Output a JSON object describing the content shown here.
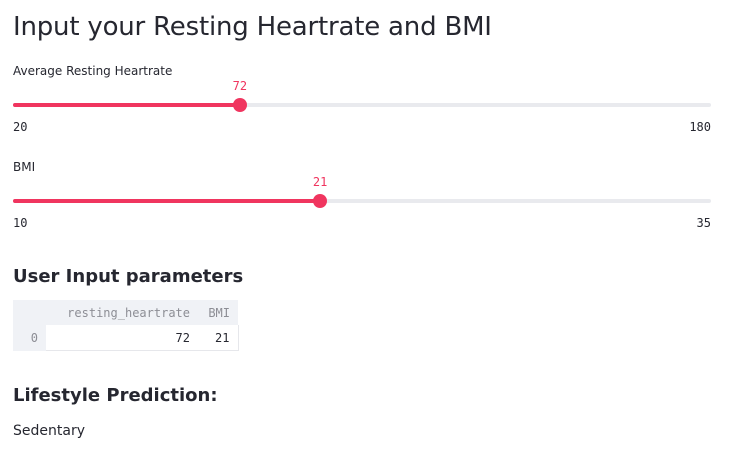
{
  "page": {
    "title": "Input your Resting Heartrate and BMI"
  },
  "sliders": [
    {
      "label": "Average Resting Heartrate",
      "value": 72,
      "min": 20,
      "max": 180
    },
    {
      "label": "BMI",
      "value": 21,
      "min": 10,
      "max": 35
    }
  ],
  "colors": {
    "accent": "#f0355f",
    "track": "#e9eaee",
    "text": "#262730",
    "table_header_bg": "#f0f2f6"
  },
  "user_input": {
    "heading": "User Input parameters",
    "columns": [
      "resting_heartrate",
      "BMI"
    ],
    "rows": [
      {
        "index": "0",
        "resting_heartrate": "72",
        "BMI": "21"
      }
    ]
  },
  "prediction": {
    "heading": "Lifestyle Prediction:",
    "result": "Sedentary"
  }
}
